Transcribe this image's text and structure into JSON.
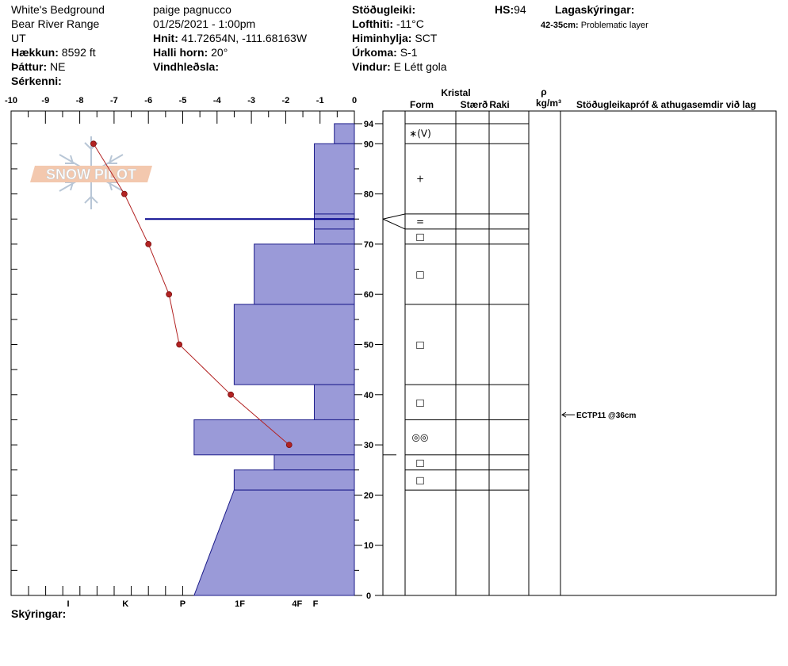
{
  "header": {
    "location": "White's Bedground",
    "range": "Bear River Range",
    "state": "UT",
    "elevation_label": "Hækkun:",
    "elevation": "8592 ft",
    "aspect_label": "Þáttur:",
    "aspect": "NE",
    "features_label": "Sérkenni:",
    "observer": "paige pagnucco",
    "datetime": "01/25/2021 - 1:00pm",
    "coords_label": "Hnit:",
    "coords": "41.72654N, -111.68163W",
    "slope_label": "Halli horn:",
    "slope": "20°",
    "wind_loading_label": "Vindhleðsla:",
    "stability_label": "Stöðugleiki:",
    "airtemp_label": "Lofthiti:",
    "airtemp": "-11°C",
    "sky_label": "Himinhylja:",
    "sky": "SCT",
    "precip_label": "Úrkoma:",
    "precip": "S-1",
    "wind_label": "Vindur:",
    "wind": "E Létt gola",
    "hs_label": "HS:",
    "hs": "94",
    "legend_label": "Lagaskýringar:",
    "problem_layer_range": "42-35cm:",
    "problem_layer_text": "Problematic layer",
    "comments_label": "Skýringar:"
  },
  "logo": {
    "text": "SNOW PILOT"
  },
  "columns": {
    "crystal": "Kristal",
    "form": "Form",
    "size": "Stærð",
    "moisture": "Raki",
    "density_symbol": "ρ",
    "density_unit": "kg/m³",
    "tests": "Stöðugleikapróf & athugasemdir við lag"
  },
  "colors": {
    "hardness_fill": "#9a9ad8",
    "hardness_stroke": "#1c1c8a",
    "temp": "#b22222",
    "blue_line": "#00008b"
  },
  "chart_data": {
    "type": "snow-profile",
    "hs_cm": 94,
    "y_range_cm": [
      0,
      94
    ],
    "y_ticks": [
      0,
      10,
      20,
      30,
      40,
      50,
      60,
      70,
      80,
      90,
      94
    ],
    "temp_axis": {
      "range_c": [
        -10,
        0
      ],
      "ticks": [
        "-10",
        "-9",
        "-8",
        "-7",
        "-6",
        "-5",
        "-4",
        "-3",
        "-2",
        "-1",
        "0"
      ]
    },
    "hardness_axis": {
      "labels": [
        "I",
        "K",
        "P",
        "1F",
        "4F",
        "F"
      ],
      "values": [
        5,
        4,
        3,
        2,
        1,
        0
      ]
    },
    "temperature_profile": [
      {
        "height": 90,
        "temp": -7.6
      },
      {
        "height": 80,
        "temp": -6.7
      },
      {
        "height": 70,
        "temp": -6.0
      },
      {
        "height": 60,
        "temp": -5.4
      },
      {
        "height": 50,
        "temp": -5.1
      },
      {
        "height": 40,
        "temp": -3.6
      },
      {
        "height": 30,
        "temp": -1.9
      }
    ],
    "hardness_layers": [
      {
        "top": 94,
        "bottom": 90,
        "hardness": 0.35,
        "form": "∗(V)"
      },
      {
        "top": 90,
        "bottom": 76,
        "hardness": 0.7,
        "form": "+"
      },
      {
        "top": 76,
        "bottom": 73,
        "hardness": 0.7,
        "form": "="
      },
      {
        "top": 73,
        "bottom": 70,
        "hardness": 0.7,
        "form": "□"
      },
      {
        "top": 70,
        "bottom": 58,
        "hardness": 1.75,
        "form": "□"
      },
      {
        "top": 58,
        "bottom": 42,
        "hardness": 2.1,
        "form": "□"
      },
      {
        "top": 42,
        "bottom": 35,
        "hardness": 0.7,
        "form": "□"
      },
      {
        "top": 35,
        "bottom": 28,
        "hardness": 2.8,
        "form": "◎◎"
      },
      {
        "top": 28,
        "bottom": 25,
        "hardness": 1.4,
        "form": "□"
      },
      {
        "top": 25,
        "bottom": 21,
        "hardness": 2.1,
        "form": "□"
      },
      {
        "top": 21,
        "bottom": 0,
        "hardness_top": 2.1,
        "hardness_bottom": 2.8,
        "form": ""
      }
    ],
    "blue_line_height": 75,
    "test_result": {
      "height": 36,
      "text": "ECTP11 @36cm"
    }
  }
}
